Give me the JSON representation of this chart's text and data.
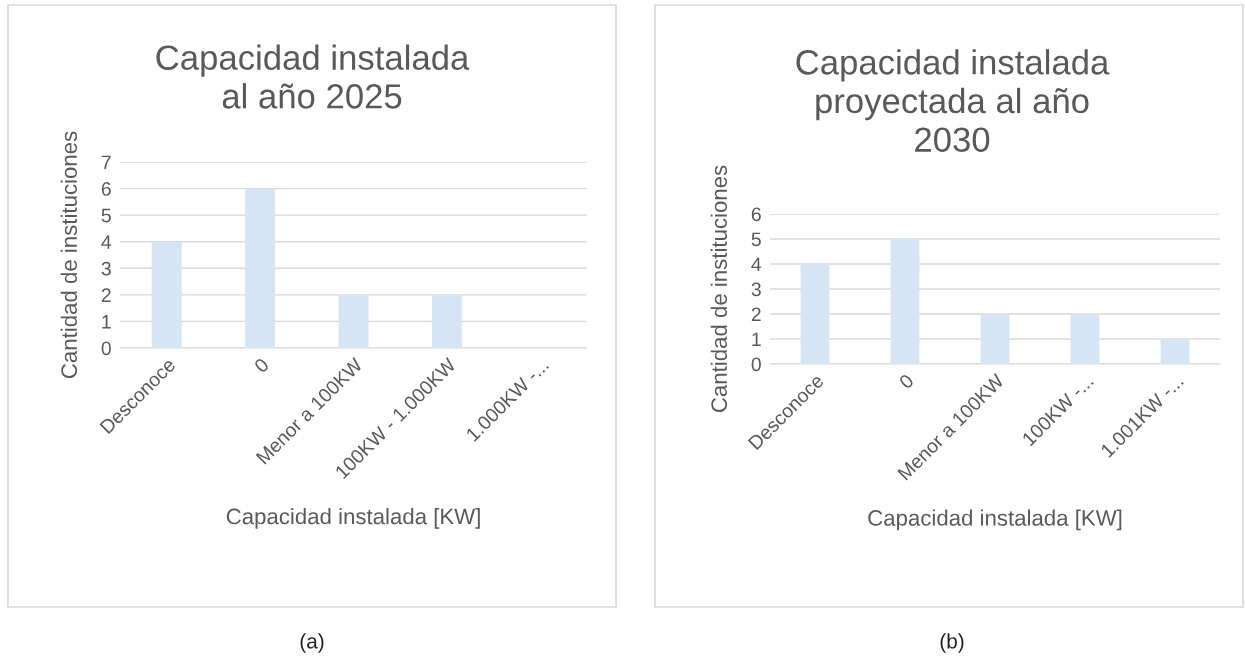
{
  "chart_data": [
    {
      "type": "bar",
      "title": "Capacidad instalada\nal año 2025",
      "xlabel": "Capacidad instalada [KW]",
      "ylabel": "Cantidad de instituciones",
      "categories": [
        "Desconoce",
        "0",
        "Menor a 100KW",
        "100KW - 1.000KW",
        "1.000KW -..."
      ],
      "values": [
        4,
        6,
        2,
        2,
        0
      ],
      "color": "#d6e4f4",
      "ylim": [
        0,
        7
      ],
      "yticks": [
        0,
        1,
        2,
        3,
        4,
        5,
        6,
        7
      ],
      "grid": "y",
      "annotations": [
        "(a)"
      ]
    },
    {
      "type": "bar",
      "title": "Capacidad instalada\nproyectada al año\n2030",
      "xlabel": "Capacidad instalada [KW]",
      "ylabel": "Cantidad de instituciones",
      "categories": [
        "Desconoce",
        "0",
        "Menor a 100KW",
        "100KW -...",
        "1.001KW -..."
      ],
      "values": [
        4,
        5,
        2,
        2,
        1
      ],
      "color": "#d6e4f4",
      "ylim": [
        0,
        6
      ],
      "yticks": [
        0,
        1,
        2,
        3,
        4,
        5,
        6
      ],
      "grid": "y",
      "annotations": [
        "(b)"
      ]
    }
  ]
}
